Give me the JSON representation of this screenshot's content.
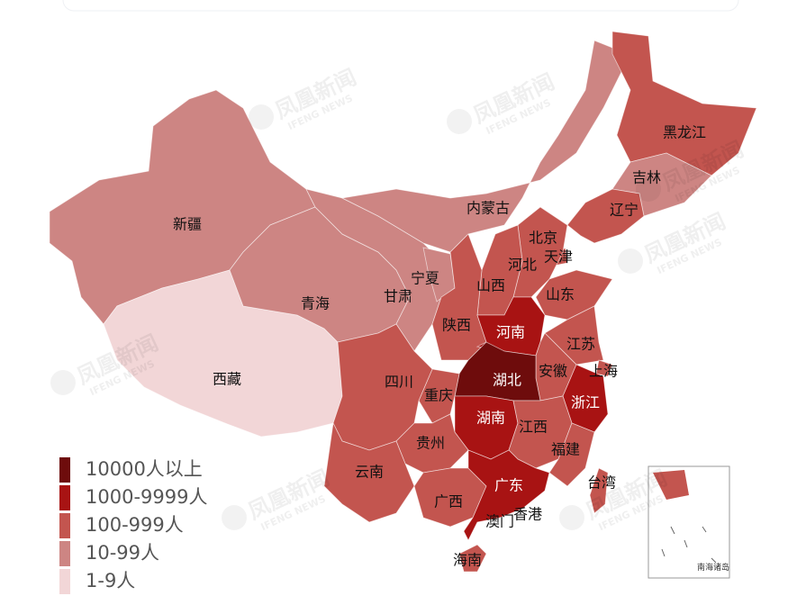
{
  "map": {
    "legend": {
      "items": [
        {
          "label": "10000人以上",
          "color": "#6e0c0c"
        },
        {
          "label": "1000-9999人",
          "color": "#a81313"
        },
        {
          "label": "100-999人",
          "color": "#c3554f"
        },
        {
          "label": "10-99人",
          "color": "#cd8583"
        },
        {
          "label": "1-9人",
          "color": "#f2d6d7"
        }
      ]
    },
    "regions": [
      {
        "name": "新疆",
        "level": 3
      },
      {
        "name": "西藏",
        "level": 4
      },
      {
        "name": "青海",
        "level": 3
      },
      {
        "name": "甘肃",
        "level": 3
      },
      {
        "name": "内蒙古",
        "level": 3
      },
      {
        "name": "宁夏",
        "level": 3
      },
      {
        "name": "黑龙江",
        "level": 2
      },
      {
        "name": "吉林",
        "level": 3
      },
      {
        "name": "辽宁",
        "level": 2
      },
      {
        "name": "北京",
        "level": 2
      },
      {
        "name": "天津",
        "level": 2
      },
      {
        "name": "河北",
        "level": 2
      },
      {
        "name": "山西",
        "level": 2
      },
      {
        "name": "陕西",
        "level": 2
      },
      {
        "name": "山东",
        "level": 2
      },
      {
        "name": "河南",
        "level": 1
      },
      {
        "name": "江苏",
        "level": 2
      },
      {
        "name": "安徽",
        "level": 2
      },
      {
        "name": "上海",
        "level": 2
      },
      {
        "name": "浙江",
        "level": 1
      },
      {
        "name": "湖北",
        "level": 0
      },
      {
        "name": "重庆",
        "level": 2
      },
      {
        "name": "四川",
        "level": 2
      },
      {
        "name": "湖南",
        "level": 1
      },
      {
        "name": "江西",
        "level": 2
      },
      {
        "name": "福建",
        "level": 2
      },
      {
        "name": "贵州",
        "level": 2
      },
      {
        "name": "云南",
        "level": 2
      },
      {
        "name": "广西",
        "level": 2
      },
      {
        "name": "广东",
        "level": 1
      },
      {
        "name": "海南",
        "level": 2
      },
      {
        "name": "台湾",
        "level": 2
      },
      {
        "name": "香港",
        "level": 2
      },
      {
        "name": "澳门",
        "level": 2
      }
    ],
    "inset_label": "南海诸岛",
    "watermark": {
      "text": "凤凰新闻",
      "sub": "IFENG NEWS"
    }
  }
}
